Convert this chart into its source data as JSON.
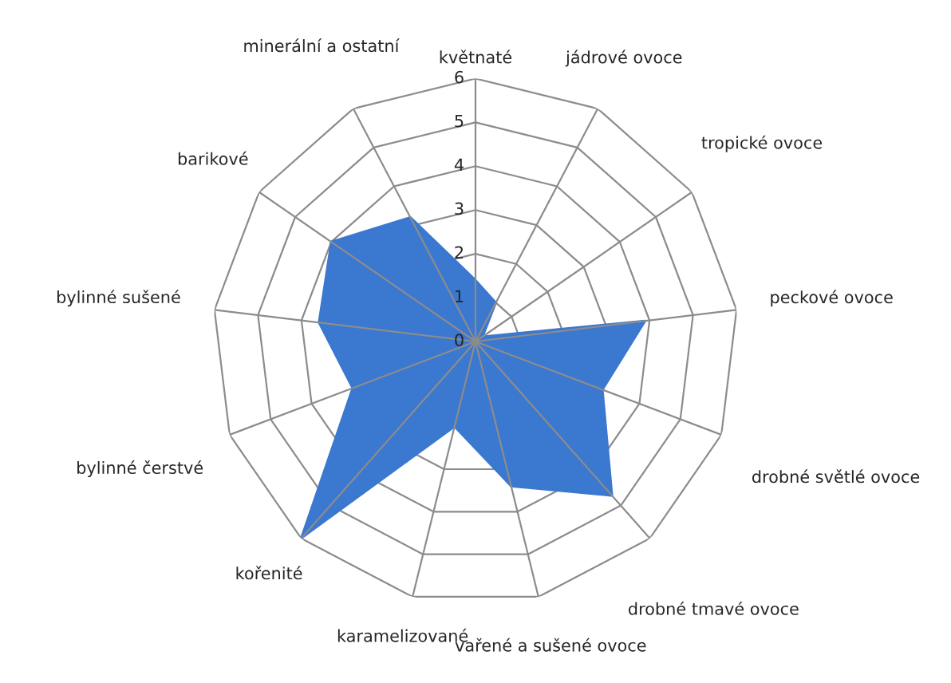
{
  "chart_data": {
    "type": "radar",
    "categories": [
      "květnaté",
      "jádrové ovoce",
      "tropické ovoce",
      "peckové ovoce",
      "drobné světlé ovoce",
      "drobné tmavé ovoce",
      "vařené a sušené ovoce",
      "karamelizované",
      "kořenité",
      "bylinné čerstvé",
      "bylinné sušené",
      "barikové",
      "minerální a ostatní"
    ],
    "series": [
      {
        "color": "#3b78d0",
        "values": [
          1.4,
          1.0,
          0.2,
          3.9,
          3.1,
          4.7,
          3.4,
          2.0,
          6.0,
          3.0,
          3.6,
          4.0,
          3.2
        ]
      }
    ],
    "ylim": [
      0,
      6
    ],
    "yticks": [
      0,
      1,
      2,
      3,
      4,
      5,
      6
    ],
    "grid": true
  }
}
